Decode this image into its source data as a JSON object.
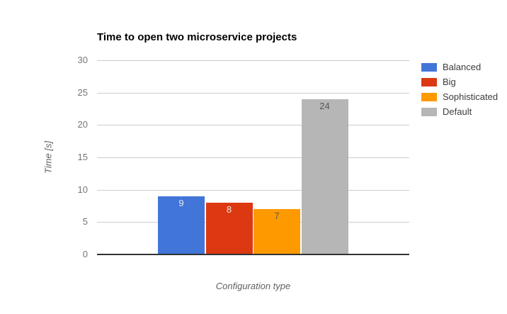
{
  "chart_data": {
    "type": "bar",
    "title": "Time to open two microservice projects",
    "xlabel": "Configuration type",
    "ylabel": "Time [s]",
    "ylim": [
      0,
      30
    ],
    "yticks": [
      0,
      5,
      10,
      15,
      20,
      25,
      30
    ],
    "grid": true,
    "legend_position": "right",
    "categories": [
      "Balanced",
      "Big",
      "Sophisticated",
      "Default"
    ],
    "values": [
      9,
      8,
      7,
      24
    ],
    "series": [
      {
        "name": "Balanced",
        "value": 9,
        "color": "#4175d8",
        "value_label_color": "#e8e8e8"
      },
      {
        "name": "Big",
        "value": 8,
        "color": "#dc3912",
        "value_label_color": "#e8e8e8"
      },
      {
        "name": "Sophisticated",
        "value": 7,
        "color": "#ff9900",
        "value_label_color": "#575757"
      },
      {
        "name": "Default",
        "value": 24,
        "color": "#b6b6b6",
        "value_label_color": "#575757"
      }
    ],
    "colors": {
      "gridline": "#cccccc",
      "axis_line": "#333333",
      "tick_label": "#757575",
      "axis_title": "#616161",
      "legend_label": "#3c3c3c",
      "background": "#ffffff"
    }
  }
}
